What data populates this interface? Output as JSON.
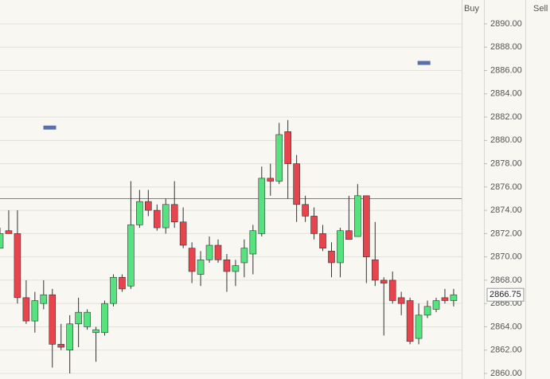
{
  "chart_data": {
    "type": "candlestick",
    "columns": [
      "Buy",
      "Sell"
    ],
    "up_color": "#56e27e",
    "down_color": "#e8444d",
    "ylim": [
      2859.52,
      2892.05
    ],
    "yticks": [
      {
        "value": 2860,
        "label": "2860.00"
      },
      {
        "value": 2862,
        "label": "2862.00"
      },
      {
        "value": 2864,
        "label": "2864.00"
      },
      {
        "value": 2866,
        "label": "2866.00"
      },
      {
        "value": 2868,
        "label": "2868.00"
      },
      {
        "value": 2870,
        "label": "2870.00"
      },
      {
        "value": 2872,
        "label": "2872.00"
      },
      {
        "value": 2874,
        "label": "2874.00"
      },
      {
        "value": 2876,
        "label": "2876.00"
      },
      {
        "value": 2878,
        "label": "2878.00"
      },
      {
        "value": 2880,
        "label": "2880.00"
      },
      {
        "value": 2882,
        "label": "2882.00"
      },
      {
        "value": 2884,
        "label": "2884.00"
      },
      {
        "value": 2886,
        "label": "2886.00"
      },
      {
        "value": 2888,
        "label": "2888.00"
      },
      {
        "value": 2890,
        "label": "2890.00"
      }
    ],
    "grid": true,
    "price_line": 2875.0,
    "current_price": 2866.75,
    "markers": {
      "x": [
        5.7,
        48.6
      ],
      "values": [
        2881.1,
        2886.65
      ],
      "color": "#5b6fa8"
    },
    "open": [
      2870.75,
      2872.25,
      2872.0,
      2866.5,
      2864.5,
      2866.0,
      2866.75,
      2862.5,
      2862.0,
      2864.25,
      2864.0,
      2863.5,
      2863.5,
      2866.0,
      2868.25,
      2867.5,
      2872.75,
      2874.75,
      2874.0,
      2872.5,
      2874.5,
      2873.0,
      2870.75,
      2868.5,
      2869.75,
      2871.0,
      2869.75,
      2868.75,
      2869.5,
      2870.25,
      2872.0,
      2876.75,
      2876.5,
      2880.75,
      2878.0,
      2874.5,
      2873.5,
      2872.0,
      2870.5,
      2869.5,
      2872.25,
      2871.75,
      2875.25,
      2869.75,
      2868.0,
      2868.0,
      2866.5,
      2866.25,
      2863.0,
      2865.0,
      2865.5,
      2866.5,
      2866.25
    ],
    "high": [
      2872.5,
      2874.0,
      2874.0,
      2868.0,
      2867.0,
      2868.0,
      2867.25,
      2864.25,
      2865.0,
      2866.5,
      2865.5,
      2864.0,
      2866.25,
      2868.5,
      2868.5,
      2876.5,
      2875.75,
      2875.75,
      2874.5,
      2875.0,
      2876.5,
      2874.25,
      2871.25,
      2870.5,
      2871.75,
      2871.5,
      2870.25,
      2869.75,
      2871.5,
      2872.75,
      2877.75,
      2878.0,
      2881.5,
      2881.75,
      2878.75,
      2875.25,
      2874.25,
      2872.75,
      2871.25,
      2872.5,
      2875.25,
      2876.25,
      2875.25,
      2873.0,
      2868.25,
      2868.75,
      2867.0,
      2866.5,
      2866.0,
      2866.25,
      2866.5,
      2867.25,
      2867.25
    ],
    "low": [
      2870.75,
      2872.0,
      2866.0,
      2864.25,
      2863.5,
      2865.5,
      2860.5,
      2862.0,
      2860.0,
      2862.25,
      2863.75,
      2861.0,
      2863.25,
      2865.75,
      2867.0,
      2867.25,
      2872.5,
      2873.5,
      2872.25,
      2872.0,
      2872.5,
      2870.75,
      2867.75,
      2867.5,
      2869.5,
      2869.5,
      2867.0,
      2867.5,
      2868.25,
      2868.5,
      2871.75,
      2875.25,
      2876.25,
      2875.0,
      2873.0,
      2873.0,
      2871.5,
      2870.5,
      2868.25,
      2868.25,
      2871.5,
      2871.75,
      2867.75,
      2867.5,
      2863.25,
      2866.0,
      2865.0,
      2862.5,
      2862.5,
      2864.75,
      2865.25,
      2866.0,
      2865.75
    ],
    "close": [
      2872.0,
      2872.0,
      2866.5,
      2864.5,
      2866.25,
      2866.75,
      2862.5,
      2862.25,
      2864.25,
      2865.25,
      2865.25,
      2863.75,
      2866.0,
      2868.25,
      2867.25,
      2872.75,
      2874.75,
      2874.0,
      2872.5,
      2874.5,
      2873.0,
      2871.0,
      2868.75,
      2869.75,
      2871.0,
      2869.75,
      2868.75,
      2869.25,
      2870.75,
      2872.25,
      2876.75,
      2876.5,
      2880.5,
      2878.0,
      2874.5,
      2873.5,
      2872.0,
      2870.75,
      2869.5,
      2872.25,
      2871.5,
      2875.25,
      2870.0,
      2868.0,
      2867.75,
      2866.25,
      2866.0,
      2862.75,
      2865.0,
      2865.75,
      2866.25,
      2866.25,
      2866.75
    ]
  }
}
